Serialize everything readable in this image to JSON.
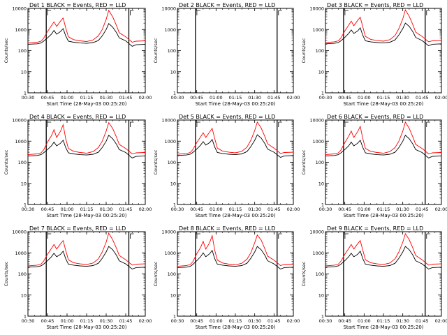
{
  "figure": {
    "xlabel": "Start Time (28-May-03 00:25:20)",
    "ylabel": "Counts/sec"
  },
  "chart_data": [
    {
      "type": "line",
      "title": "Det 1 BLACK = Events, RED = LLD",
      "xlabel": "Start Time (28-May-03 00:25:20)",
      "ylabel": "Counts/sec",
      "xlim": [
        "00:30",
        "02:00"
      ],
      "ylim": [
        1,
        10000
      ],
      "yscale": "log",
      "x_ticks": [
        "00:30",
        "00:45",
        "01:00",
        "01:15",
        "01:30",
        "01:45",
        "02:00"
      ],
      "y_ticks": [
        "1",
        "10",
        "100",
        "1000",
        "10000"
      ],
      "x": [
        "00:30",
        "00:37",
        "00:40",
        "00:42",
        "00:45",
        "00:48",
        "00:50",
        "00:52",
        "00:55",
        "00:57",
        "00:59",
        "01:01",
        "01:05",
        "01:10",
        "01:15",
        "01:20",
        "01:24",
        "01:27",
        "01:30",
        "01:32",
        "01:35",
        "01:38",
        "01:40",
        "01:45",
        "01:50",
        "01:53",
        "02:00"
      ],
      "series": [
        {
          "values": [
            200,
            210,
            230,
            280,
            400,
            600,
            900,
            600,
            800,
            1100,
            500,
            280,
            250,
            230,
            220,
            240,
            300,
            500,
            1000,
            1900,
            1300,
            700,
            400,
            290,
            160,
            190,
            200
          ]
        },
        {
          "values": [
            230,
            250,
            280,
            380,
            800,
            1500,
            2300,
            1400,
            2500,
            3500,
            1200,
            450,
            330,
            290,
            270,
            320,
            500,
            1000,
            3000,
            8000,
            4000,
            1500,
            700,
            450,
            250,
            280,
            290
          ]
        }
      ]
    },
    {
      "type": "line",
      "title": "Det 2 BLACK = Events, RED = LLD",
      "xlabel": "Start Time (28-May-03 00:25:20)",
      "ylabel": "Counts/sec",
      "xlim": [
        "00:30",
        "02:00"
      ],
      "ylim": [
        1,
        10000
      ],
      "yscale": "log",
      "x_ticks": [
        "00:30",
        "00:45",
        "01:00",
        "01:15",
        "01:30",
        "01:45",
        "02:00"
      ],
      "y_ticks": [
        "1",
        "10",
        "100",
        "1000",
        "10000"
      ],
      "x": [],
      "series": []
    },
    {
      "type": "line",
      "title": "Det 3 BLACK = Events, RED = LLD",
      "xlabel": "Start Time (28-May-03 00:25:20)",
      "ylabel": "Counts/sec",
      "xlim": [
        "00:30",
        "02:00"
      ],
      "ylim": [
        1,
        10000
      ],
      "yscale": "log",
      "x_ticks": [
        "00:30",
        "00:45",
        "01:00",
        "01:15",
        "01:30",
        "01:45",
        "02:00"
      ],
      "y_ticks": [
        "1",
        "10",
        "100",
        "1000",
        "10000"
      ],
      "x": [
        "00:30",
        "00:37",
        "00:40",
        "00:42",
        "00:45",
        "00:48",
        "00:50",
        "00:52",
        "00:55",
        "00:57",
        "00:59",
        "01:01",
        "01:05",
        "01:10",
        "01:15",
        "01:20",
        "01:24",
        "01:27",
        "01:30",
        "01:32",
        "01:35",
        "01:38",
        "01:40",
        "01:45",
        "01:50",
        "01:53",
        "02:00"
      ],
      "series": [
        {
          "values": [
            210,
            220,
            240,
            290,
            420,
            650,
            950,
            650,
            850,
            1200,
            520,
            290,
            260,
            240,
            230,
            250,
            320,
            550,
            1100,
            2000,
            1400,
            750,
            420,
            300,
            170,
            200,
            210
          ]
        },
        {
          "values": [
            240,
            260,
            290,
            400,
            850,
            1600,
            2500,
            1500,
            2700,
            3800,
            1300,
            470,
            340,
            300,
            280,
            330,
            520,
            1100,
            3200,
            8500,
            4200,
            1600,
            750,
            470,
            260,
            290,
            300
          ]
        }
      ]
    },
    {
      "type": "line",
      "title": "Det 4 BLACK = Events, RED = LLD",
      "xlabel": "Start Time (28-May-03 00:25:20)",
      "ylabel": "Counts/sec",
      "xlim": [
        "00:30",
        "02:00"
      ],
      "ylim": [
        1,
        10000
      ],
      "yscale": "log",
      "x_ticks": [
        "00:30",
        "00:45",
        "01:00",
        "01:15",
        "01:30",
        "01:45",
        "02:00"
      ],
      "y_ticks": [
        "1",
        "10",
        "100",
        "1000",
        "10000"
      ],
      "x": [
        "00:30",
        "00:37",
        "00:40",
        "00:42",
        "00:45",
        "00:48",
        "00:50",
        "00:52",
        "00:55",
        "00:57",
        "00:59",
        "01:01",
        "01:05",
        "01:10",
        "01:15",
        "01:20",
        "01:24",
        "01:27",
        "01:30",
        "01:32",
        "01:35",
        "01:38",
        "01:40",
        "01:45",
        "01:50",
        "01:53",
        "02:00"
      ],
      "series": [
        {
          "values": [
            200,
            210,
            230,
            280,
            400,
            600,
            900,
            600,
            800,
            1100,
            500,
            280,
            250,
            230,
            220,
            240,
            300,
            500,
            1000,
            1900,
            1300,
            700,
            400,
            290,
            160,
            190,
            200
          ]
        },
        {
          "values": [
            230,
            250,
            280,
            380,
            900,
            1800,
            3500,
            1500,
            3000,
            6000,
            1300,
            450,
            330,
            290,
            270,
            320,
            500,
            1000,
            3000,
            7500,
            4000,
            1500,
            700,
            450,
            250,
            280,
            290
          ]
        }
      ]
    },
    {
      "type": "line",
      "title": "Det 5 BLACK = Events, RED = LLD",
      "xlabel": "Start Time (28-May-03 00:25:20)",
      "ylabel": "Counts/sec",
      "xlim": [
        "00:30",
        "02:00"
      ],
      "ylim": [
        1,
        10000
      ],
      "yscale": "log",
      "x_ticks": [
        "00:30",
        "00:45",
        "01:00",
        "01:15",
        "01:30",
        "01:45",
        "02:00"
      ],
      "y_ticks": [
        "1",
        "10",
        "100",
        "1000",
        "10000"
      ],
      "x": [
        "00:30",
        "00:37",
        "00:40",
        "00:42",
        "00:45",
        "00:48",
        "00:50",
        "00:52",
        "00:55",
        "00:57",
        "00:59",
        "01:01",
        "01:05",
        "01:10",
        "01:15",
        "01:20",
        "01:24",
        "01:27",
        "01:30",
        "01:32",
        "01:35",
        "01:38",
        "01:40",
        "01:45",
        "01:50",
        "01:53",
        "02:00"
      ],
      "series": [
        {
          "values": [
            210,
            220,
            240,
            290,
            420,
            650,
            950,
            650,
            850,
            1200,
            520,
            290,
            260,
            240,
            230,
            250,
            320,
            550,
            1100,
            2000,
            1400,
            750,
            420,
            300,
            170,
            200,
            210
          ]
        },
        {
          "values": [
            240,
            260,
            290,
            400,
            850,
            1600,
            2500,
            1500,
            2700,
            4000,
            1300,
            470,
            340,
            300,
            280,
            330,
            520,
            1100,
            3200,
            8000,
            4200,
            1600,
            750,
            470,
            260,
            290,
            300
          ]
        }
      ]
    },
    {
      "type": "line",
      "title": "Det 6 BLACK = Events, RED = LLD",
      "xlabel": "Start Time (28-May-03 00:25:20)",
      "ylabel": "Counts/sec",
      "xlim": [
        "00:30",
        "02:00"
      ],
      "ylim": [
        1,
        10000
      ],
      "yscale": "log",
      "x_ticks": [
        "00:30",
        "00:45",
        "01:00",
        "01:15",
        "01:30",
        "01:45",
        "02:00"
      ],
      "y_ticks": [
        "1",
        "10",
        "100",
        "1000",
        "10000"
      ],
      "x": [
        "00:30",
        "00:37",
        "00:40",
        "00:42",
        "00:45",
        "00:48",
        "00:50",
        "00:52",
        "00:55",
        "00:57",
        "00:59",
        "01:01",
        "01:05",
        "01:10",
        "01:15",
        "01:20",
        "01:24",
        "01:27",
        "01:30",
        "01:32",
        "01:35",
        "01:38",
        "01:40",
        "01:45",
        "01:50",
        "01:53",
        "02:00"
      ],
      "series": [
        {
          "values": [
            200,
            210,
            230,
            280,
            400,
            600,
            900,
            600,
            800,
            1100,
            500,
            280,
            250,
            230,
            220,
            240,
            300,
            500,
            1000,
            1900,
            1300,
            700,
            400,
            290,
            160,
            190,
            200
          ]
        },
        {
          "values": [
            230,
            250,
            280,
            380,
            850,
            1700,
            3000,
            1500,
            2800,
            5000,
            1300,
            450,
            330,
            290,
            270,
            320,
            500,
            1000,
            3000,
            8000,
            4000,
            1500,
            700,
            450,
            250,
            280,
            290
          ]
        }
      ]
    },
    {
      "type": "line",
      "title": "Det 7 BLACK = Events, RED = LLD",
      "xlabel": "Start Time (28-May-03 00:25:20)",
      "ylabel": "Counts/sec",
      "xlim": [
        "00:30",
        "02:00"
      ],
      "ylim": [
        1,
        10000
      ],
      "yscale": "log",
      "x_ticks": [
        "00:30",
        "00:45",
        "01:00",
        "01:15",
        "01:30",
        "01:45",
        "02:00"
      ],
      "y_ticks": [
        "1",
        "10",
        "100",
        "1000",
        "10000"
      ],
      "x": [
        "00:30",
        "00:37",
        "00:40",
        "00:42",
        "00:45",
        "00:48",
        "00:50",
        "00:52",
        "00:55",
        "00:57",
        "00:59",
        "01:01",
        "01:05",
        "01:10",
        "01:15",
        "01:20",
        "01:24",
        "01:27",
        "01:30",
        "01:32",
        "01:35",
        "01:38",
        "01:40",
        "01:45",
        "01:50",
        "01:53",
        "02:00"
      ],
      "series": [
        {
          "values": [
            210,
            220,
            240,
            290,
            420,
            650,
            950,
            650,
            850,
            1200,
            520,
            290,
            260,
            240,
            230,
            250,
            320,
            550,
            1100,
            2000,
            1400,
            750,
            420,
            300,
            170,
            200,
            210
          ]
        },
        {
          "values": [
            240,
            260,
            290,
            400,
            850,
            1600,
            2500,
            1500,
            2700,
            3800,
            1300,
            470,
            340,
            300,
            280,
            330,
            520,
            1100,
            3200,
            8500,
            4200,
            1600,
            750,
            470,
            260,
            290,
            300
          ]
        }
      ]
    },
    {
      "type": "line",
      "title": "Det 8 BLACK = Events, RED = LLD",
      "xlabel": "Start Time (28-May-03 00:25:20)",
      "ylabel": "Counts/sec",
      "xlim": [
        "00:30",
        "02:00"
      ],
      "ylim": [
        1,
        10000
      ],
      "yscale": "log",
      "x_ticks": [
        "00:30",
        "00:45",
        "01:00",
        "01:15",
        "01:30",
        "01:45",
        "02:00"
      ],
      "y_ticks": [
        "1",
        "10",
        "100",
        "1000",
        "10000"
      ],
      "x": [
        "00:30",
        "00:37",
        "00:40",
        "00:42",
        "00:45",
        "00:48",
        "00:50",
        "00:52",
        "00:55",
        "00:57",
        "00:59",
        "01:01",
        "01:05",
        "01:10",
        "01:15",
        "01:20",
        "01:24",
        "01:27",
        "01:30",
        "01:32",
        "01:35",
        "01:38",
        "01:40",
        "01:45",
        "01:50",
        "01:53",
        "02:00"
      ],
      "series": [
        {
          "values": [
            200,
            210,
            230,
            280,
            420,
            650,
            1000,
            650,
            900,
            1300,
            520,
            290,
            260,
            240,
            230,
            250,
            320,
            550,
            1100,
            2000,
            1400,
            750,
            420,
            300,
            170,
            200,
            210
          ]
        },
        {
          "values": [
            230,
            250,
            280,
            380,
            900,
            1800,
            3500,
            1500,
            3000,
            6500,
            1300,
            450,
            330,
            290,
            270,
            320,
            500,
            1000,
            3000,
            7000,
            4000,
            1500,
            700,
            450,
            250,
            280,
            290
          ]
        }
      ]
    },
    {
      "type": "line",
      "title": "Det 9 BLACK = Events, RED = LLD",
      "xlabel": "Start Time (28-May-03 00:25:20)",
      "ylabel": "Counts/sec",
      "xlim": [
        "00:30",
        "02:00"
      ],
      "ylim": [
        1,
        10000
      ],
      "yscale": "log",
      "x_ticks": [
        "00:30",
        "00:45",
        "01:00",
        "01:15",
        "01:30",
        "01:45",
        "02:00"
      ],
      "y_ticks": [
        "1",
        "10",
        "100",
        "1000",
        "10000"
      ],
      "x": [
        "00:30",
        "00:37",
        "00:40",
        "00:42",
        "00:45",
        "00:48",
        "00:50",
        "00:52",
        "00:55",
        "00:57",
        "00:59",
        "01:01",
        "01:05",
        "01:10",
        "01:15",
        "01:20",
        "01:24",
        "01:27",
        "01:30",
        "01:32",
        "01:35",
        "01:38",
        "01:40",
        "01:45",
        "01:50",
        "01:53",
        "02:00"
      ],
      "series": [
        {
          "values": [
            210,
            220,
            240,
            290,
            420,
            650,
            950,
            650,
            850,
            1200,
            520,
            290,
            260,
            240,
            230,
            250,
            320,
            550,
            1100,
            2000,
            1400,
            750,
            420,
            300,
            170,
            200,
            210
          ]
        },
        {
          "values": [
            240,
            260,
            290,
            400,
            850,
            1600,
            2500,
            1500,
            2700,
            3800,
            1300,
            470,
            340,
            300,
            280,
            330,
            520,
            1100,
            3200,
            8000,
            4200,
            1600,
            750,
            470,
            260,
            290,
            300
          ]
        }
      ]
    }
  ],
  "colors": {
    "events": "#000000",
    "lld": "#ff0000",
    "axes": "#000000",
    "background": "#ffffff"
  }
}
